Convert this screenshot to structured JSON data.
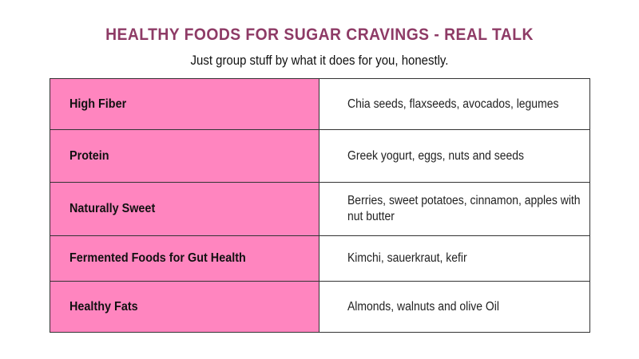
{
  "header": {
    "title": "HEALTHY FOODS FOR SUGAR CRAVINGS - REAL TALK",
    "subtitle": "Just group stuff by what it does for you, honestly."
  },
  "table": {
    "rows": [
      {
        "category": "High Fiber",
        "foods": "Chia seeds, flaxseeds, avocados, legumes"
      },
      {
        "category": "Protein",
        "foods": "Greek yogurt, eggs, nuts and seeds"
      },
      {
        "category": "Naturally Sweet",
        "foods": "Berries, sweet potatoes, cinnamon, apples with nut butter"
      },
      {
        "category": "Fermented Foods for Gut Health",
        "foods": "Kimchi, sauerkraut, kefir"
      },
      {
        "category": "Healthy Fats",
        "foods": "Almonds, walnuts and olive Oil"
      }
    ]
  },
  "colors": {
    "title": "#8e3b66",
    "category_fill": "#ff85bf",
    "border": "#333333"
  }
}
